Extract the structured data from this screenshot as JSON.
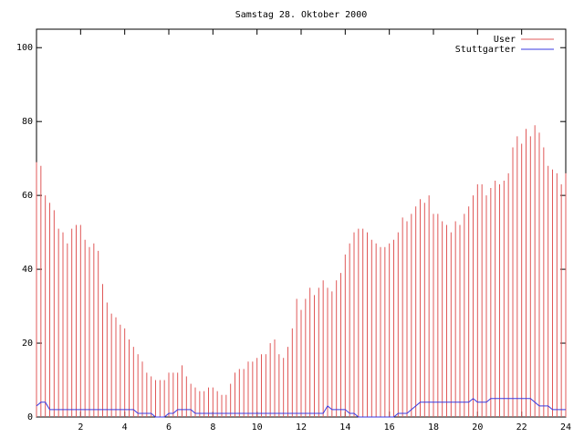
{
  "chart_data": {
    "type": "impulses-line",
    "title": "Samstag 28. Oktober 2000",
    "x": [
      0,
      0.2,
      0.4,
      0.6,
      0.8,
      1,
      1.2,
      1.4,
      1.6,
      1.8,
      2,
      2.2,
      2.4,
      2.6,
      2.8,
      3,
      3.2,
      3.4,
      3.6,
      3.8,
      4,
      4.2,
      4.4,
      4.6,
      4.8,
      5,
      5.2,
      5.4,
      5.6,
      5.8,
      6,
      6.2,
      6.4,
      6.6,
      6.8,
      7,
      7.2,
      7.4,
      7.6,
      7.8,
      8,
      8.2,
      8.4,
      8.6,
      8.8,
      9,
      9.2,
      9.4,
      9.6,
      9.8,
      10,
      10.2,
      10.4,
      10.6,
      10.8,
      11,
      11.2,
      11.4,
      11.6,
      11.8,
      12,
      12.2,
      12.4,
      12.6,
      12.8,
      13,
      13.2,
      13.4,
      13.6,
      13.8,
      14,
      14.2,
      14.4,
      14.6,
      14.8,
      15,
      15.2,
      15.4,
      15.6,
      15.8,
      16,
      16.2,
      16.4,
      16.6,
      16.8,
      17,
      17.2,
      17.4,
      17.6,
      17.8,
      18,
      18.2,
      18.4,
      18.6,
      18.8,
      19,
      19.2,
      19.4,
      19.6,
      19.8,
      20,
      20.2,
      20.4,
      20.6,
      20.8,
      21,
      21.2,
      21.4,
      21.6,
      21.8,
      22,
      22.2,
      22.4,
      22.6,
      22.8,
      23,
      23.2,
      23.4,
      23.6,
      23.8,
      24
    ],
    "series": [
      {
        "name": "User",
        "color": "#e05858",
        "style": "impulses",
        "values": [
          69,
          68,
          60,
          58,
          56,
          51,
          50,
          47,
          51,
          52,
          52,
          48,
          46,
          47,
          45,
          36,
          31,
          28,
          27,
          25,
          24,
          21,
          19,
          17,
          15,
          12,
          11,
          10,
          10,
          10,
          12,
          12,
          12,
          14,
          11,
          9,
          8,
          7,
          7,
          8,
          8,
          7,
          6,
          6,
          9,
          12,
          13,
          13,
          15,
          15,
          16,
          17,
          17,
          20,
          21,
          17,
          16,
          19,
          24,
          32,
          29,
          32,
          35,
          33,
          35,
          37,
          35,
          34,
          37,
          39,
          44,
          47,
          50,
          51,
          51,
          50,
          48,
          47,
          46,
          46,
          47,
          48,
          50,
          54,
          53,
          55,
          57,
          59,
          58,
          60,
          55,
          55,
          53,
          52,
          50,
          53,
          52,
          55,
          57,
          60,
          63,
          63,
          60,
          62,
          64,
          63,
          64,
          66,
          73,
          76,
          74,
          78,
          76,
          79,
          77,
          73,
          68,
          67,
          66,
          63,
          66
        ]
      },
      {
        "name": "Stuttgarter",
        "color": "#3a3ae0",
        "style": "line",
        "values": [
          3,
          4,
          4,
          2,
          2,
          2,
          2,
          2,
          2,
          2,
          2,
          2,
          2,
          2,
          2,
          2,
          2,
          2,
          2,
          2,
          2,
          2,
          2,
          1,
          1,
          1,
          1,
          0,
          0,
          0,
          1,
          1,
          2,
          2,
          2,
          2,
          1,
          1,
          1,
          1,
          1,
          1,
          1,
          1,
          1,
          1,
          1,
          1,
          1,
          1,
          1,
          1,
          1,
          1,
          1,
          1,
          1,
          1,
          1,
          1,
          1,
          1,
          1,
          1,
          1,
          1,
          3,
          2,
          2,
          2,
          2,
          1,
          1,
          0,
          0,
          0,
          0,
          0,
          0,
          0,
          0,
          0,
          1,
          1,
          1,
          2,
          3,
          4,
          4,
          4,
          4,
          4,
          4,
          4,
          4,
          4,
          4,
          4,
          4,
          5,
          4,
          4,
          4,
          5,
          5,
          5,
          5,
          5,
          5,
          5,
          5,
          5,
          5,
          4,
          3,
          3,
          3,
          2,
          2,
          2,
          2
        ]
      }
    ],
    "xlim": [
      0,
      24
    ],
    "xticks": [
      2,
      4,
      6,
      8,
      10,
      12,
      14,
      16,
      18,
      20,
      22,
      24
    ],
    "ylim": [
      0,
      105
    ],
    "yticks": [
      0,
      20,
      40,
      60,
      80,
      100
    ],
    "legend": "top-right"
  }
}
